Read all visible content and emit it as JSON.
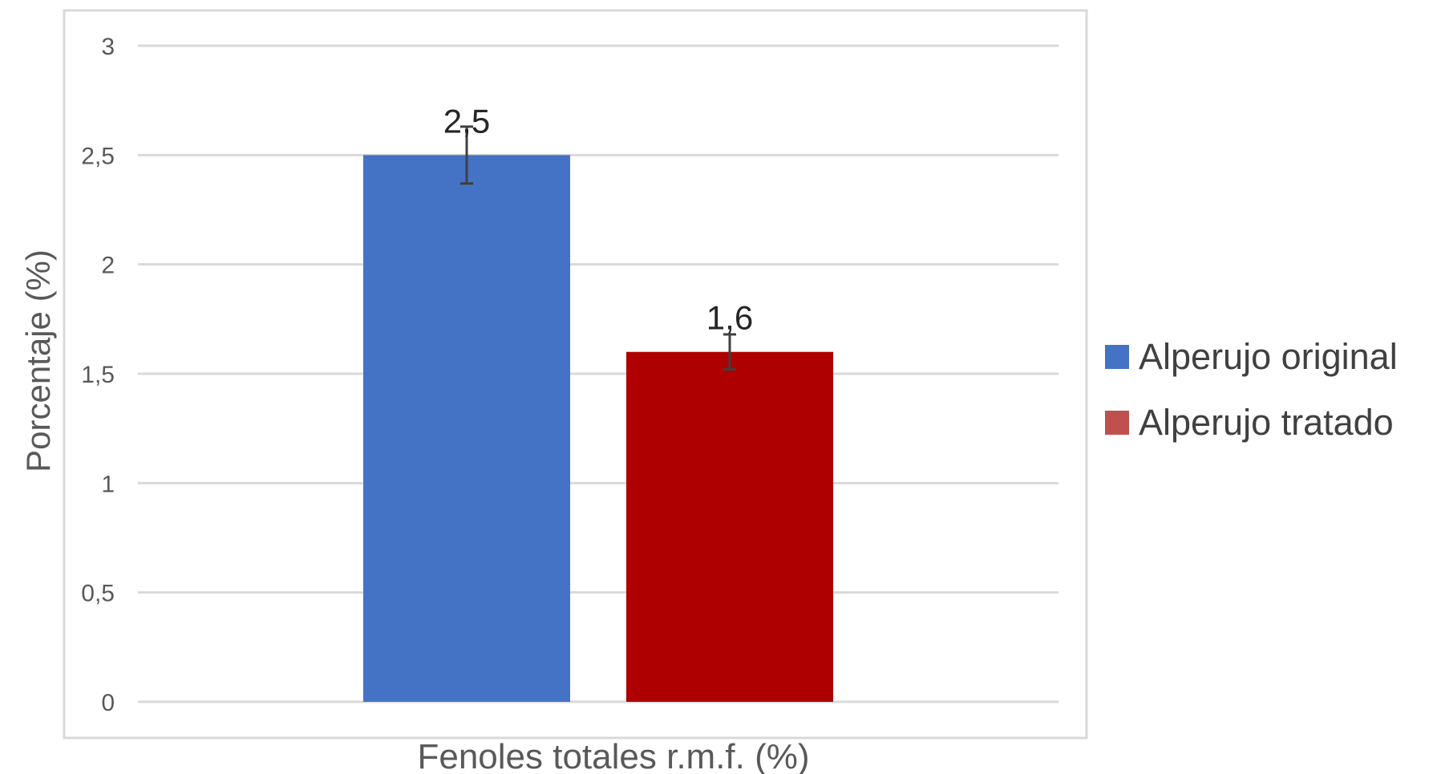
{
  "chart_data": {
    "type": "bar",
    "xlabel": "Fenoles totales r.m.f. (%)",
    "ylabel": "Porcentaje (%)",
    "ylim": [
      0,
      3
    ],
    "yticks": [
      "0",
      "0,5",
      "1",
      "1,5",
      "2",
      "2,5",
      "3"
    ],
    "ytick_values": [
      0,
      0.5,
      1,
      1.5,
      2,
      2.5,
      3
    ],
    "grid": true,
    "legend_position": "right",
    "series": [
      {
        "name": "Alperujo original",
        "value": 2.5,
        "label": "2,5",
        "error": 0.13,
        "color": "#4472C4"
      },
      {
        "name": "Alperujo tratado",
        "value": 1.6,
        "label": "1,6",
        "error": 0.08,
        "color": "#AE0000"
      }
    ],
    "legend_colors": [
      "#4472C4",
      "#C0504D"
    ]
  }
}
